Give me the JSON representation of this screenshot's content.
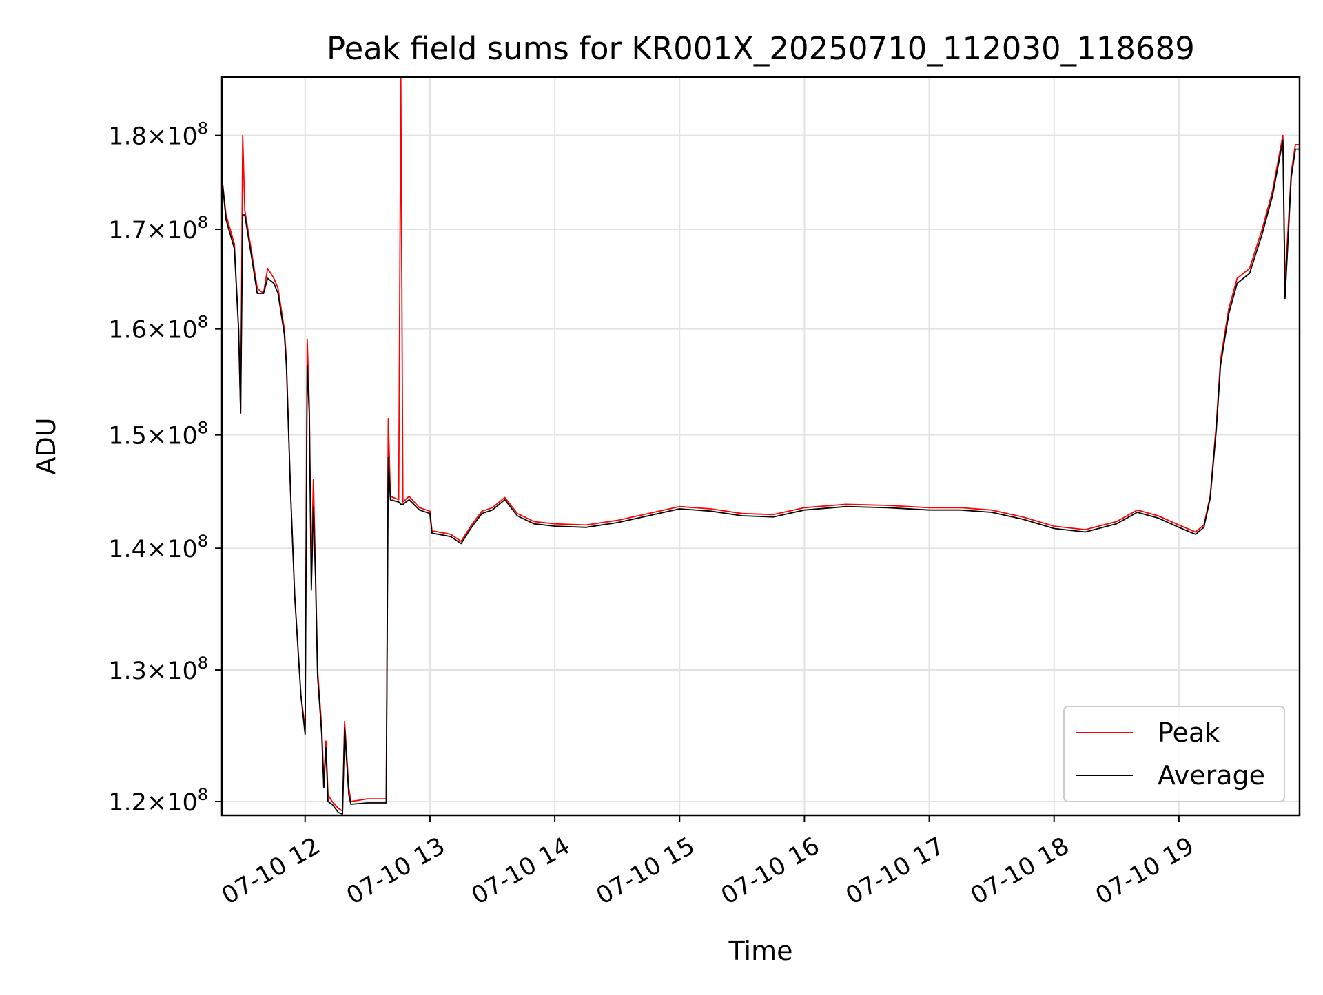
{
  "chart_data": {
    "type": "line",
    "title": "Peak field sums for KR001X_20250710_112030_118689",
    "xlabel": "Time",
    "ylabel": "ADU",
    "x_type": "time",
    "xlim": [
      "2025-07-10 11:20",
      "2025-07-10 19:58"
    ],
    "ylim": [
      119000000,
      186500000
    ],
    "yscale": "log",
    "grid": true,
    "legend_position": "lower-right",
    "x_ticks": [
      {
        "value": "2025-07-10 12:00",
        "label": "07-10 12"
      },
      {
        "value": "2025-07-10 13:00",
        "label": "07-10 13"
      },
      {
        "value": "2025-07-10 14:00",
        "label": "07-10 14"
      },
      {
        "value": "2025-07-10 15:00",
        "label": "07-10 15"
      },
      {
        "value": "2025-07-10 16:00",
        "label": "07-10 16"
      },
      {
        "value": "2025-07-10 17:00",
        "label": "07-10 17"
      },
      {
        "value": "2025-07-10 18:00",
        "label": "07-10 18"
      },
      {
        "value": "2025-07-10 19:00",
        "label": "07-10 19"
      }
    ],
    "y_ticks": [
      {
        "value": 120000000,
        "mantissa": "1.2",
        "base": "10",
        "exponent": "8"
      },
      {
        "value": 130000000,
        "mantissa": "1.3",
        "base": "10",
        "exponent": "8"
      },
      {
        "value": 140000000,
        "mantissa": "1.4",
        "base": "10",
        "exponent": "8"
      },
      {
        "value": 150000000,
        "mantissa": "1.5",
        "base": "10",
        "exponent": "8"
      },
      {
        "value": 160000000,
        "mantissa": "1.6",
        "base": "10",
        "exponent": "8"
      },
      {
        "value": 170000000,
        "mantissa": "1.7",
        "base": "10",
        "exponent": "8"
      },
      {
        "value": 180000000,
        "mantissa": "1.8",
        "base": "10",
        "exponent": "8"
      }
    ],
    "series": [
      {
        "name": "Peak",
        "color": "#ff0000",
        "points": [
          [
            "2025-07-10 11:20",
            175500000
          ],
          [
            "2025-07-10 11:22",
            171500000
          ],
          [
            "2025-07-10 11:26",
            168500000
          ],
          [
            "2025-07-10 11:28",
            160000000
          ],
          [
            "2025-07-10 11:29",
            152000000
          ],
          [
            "2025-07-10 11:30",
            180000000
          ],
          [
            "2025-07-10 11:31",
            172000000
          ],
          [
            "2025-07-10 11:34",
            168000000
          ],
          [
            "2025-07-10 11:37",
            164000000
          ],
          [
            "2025-07-10 11:40",
            163500000
          ],
          [
            "2025-07-10 11:42",
            166000000
          ],
          [
            "2025-07-10 11:45",
            165000000
          ],
          [
            "2025-07-10 11:47",
            164000000
          ],
          [
            "2025-07-10 11:50",
            160000000
          ],
          [
            "2025-07-10 11:51",
            157000000
          ],
          [
            "2025-07-10 11:53",
            145000000
          ],
          [
            "2025-07-10 11:55",
            136000000
          ],
          [
            "2025-07-10 11:58",
            128000000
          ],
          [
            "2025-07-10 12:00",
            125500000
          ],
          [
            "2025-07-10 12:01",
            159000000
          ],
          [
            "2025-07-10 12:02",
            153000000
          ],
          [
            "2025-07-10 12:03",
            138000000
          ],
          [
            "2025-07-10 12:04",
            146000000
          ],
          [
            "2025-07-10 12:05",
            138000000
          ],
          [
            "2025-07-10 12:06",
            130000000
          ],
          [
            "2025-07-10 12:08",
            125500000
          ],
          [
            "2025-07-10 12:09",
            121500000
          ],
          [
            "2025-07-10 12:10",
            124500000
          ],
          [
            "2025-07-10 12:11",
            120500000
          ],
          [
            "2025-07-10 12:13",
            120000000
          ],
          [
            "2025-07-10 12:16",
            119500000
          ],
          [
            "2025-07-10 12:18",
            119300000
          ],
          [
            "2025-07-10 12:19",
            126000000
          ],
          [
            "2025-07-10 12:21",
            121000000
          ],
          [
            "2025-07-10 12:22",
            120000000
          ],
          [
            "2025-07-10 12:30",
            120200000
          ],
          [
            "2025-07-10 12:39",
            120200000
          ],
          [
            "2025-07-10 12:40",
            151500000
          ],
          [
            "2025-07-10 12:41",
            144500000
          ],
          [
            "2025-07-10 12:45",
            144200000
          ],
          [
            "2025-07-10 12:46",
            186500000
          ],
          [
            "2025-07-10 12:47",
            144000000
          ],
          [
            "2025-07-10 12:50",
            144500000
          ],
          [
            "2025-07-10 12:55",
            143500000
          ],
          [
            "2025-07-10 13:00",
            143200000
          ],
          [
            "2025-07-10 13:01",
            141500000
          ],
          [
            "2025-07-10 13:10",
            141200000
          ],
          [
            "2025-07-10 13:15",
            140600000
          ],
          [
            "2025-07-10 13:20",
            142000000
          ],
          [
            "2025-07-10 13:25",
            143200000
          ],
          [
            "2025-07-10 13:30",
            143500000
          ],
          [
            "2025-07-10 13:36",
            144400000
          ],
          [
            "2025-07-10 13:42",
            143000000
          ],
          [
            "2025-07-10 13:50",
            142300000
          ],
          [
            "2025-07-10 14:00",
            142100000
          ],
          [
            "2025-07-10 14:15",
            142000000
          ],
          [
            "2025-07-10 14:30",
            142400000
          ],
          [
            "2025-07-10 14:45",
            143000000
          ],
          [
            "2025-07-10 15:00",
            143600000
          ],
          [
            "2025-07-10 15:15",
            143400000
          ],
          [
            "2025-07-10 15:30",
            143000000
          ],
          [
            "2025-07-10 15:45",
            142900000
          ],
          [
            "2025-07-10 16:00",
            143500000
          ],
          [
            "2025-07-10 16:20",
            143800000
          ],
          [
            "2025-07-10 16:40",
            143700000
          ],
          [
            "2025-07-10 17:00",
            143500000
          ],
          [
            "2025-07-10 17:15",
            143500000
          ],
          [
            "2025-07-10 17:30",
            143300000
          ],
          [
            "2025-07-10 17:45",
            142700000
          ],
          [
            "2025-07-10 18:00",
            141900000
          ],
          [
            "2025-07-10 18:15",
            141600000
          ],
          [
            "2025-07-10 18:30",
            142300000
          ],
          [
            "2025-07-10 18:40",
            143300000
          ],
          [
            "2025-07-10 18:50",
            142800000
          ],
          [
            "2025-07-10 19:00",
            142000000
          ],
          [
            "2025-07-10 19:08",
            141400000
          ],
          [
            "2025-07-10 19:12",
            142000000
          ],
          [
            "2025-07-10 19:15",
            144500000
          ],
          [
            "2025-07-10 19:18",
            151000000
          ],
          [
            "2025-07-10 19:20",
            157000000
          ],
          [
            "2025-07-10 19:24",
            162000000
          ],
          [
            "2025-07-10 19:28",
            165000000
          ],
          [
            "2025-07-10 19:34",
            166000000
          ],
          [
            "2025-07-10 19:40",
            170000000
          ],
          [
            "2025-07-10 19:45",
            174000000
          ],
          [
            "2025-07-10 19:50",
            180000000
          ],
          [
            "2025-07-10 19:51",
            164500000
          ],
          [
            "2025-07-10 19:54",
            176000000
          ],
          [
            "2025-07-10 19:56",
            179000000
          ],
          [
            "2025-07-10 19:58",
            179000000
          ]
        ]
      },
      {
        "name": "Average",
        "color": "#000000",
        "points": [
          [
            "2025-07-10 11:20",
            175500000
          ],
          [
            "2025-07-10 11:22",
            171000000
          ],
          [
            "2025-07-10 11:26",
            168000000
          ],
          [
            "2025-07-10 11:28",
            160000000
          ],
          [
            "2025-07-10 11:29",
            152000000
          ],
          [
            "2025-07-10 11:30",
            171500000
          ],
          [
            "2025-07-10 11:31",
            171500000
          ],
          [
            "2025-07-10 11:34",
            167500000
          ],
          [
            "2025-07-10 11:37",
            163500000
          ],
          [
            "2025-07-10 11:40",
            163500000
          ],
          [
            "2025-07-10 11:42",
            165000000
          ],
          [
            "2025-07-10 11:45",
            164500000
          ],
          [
            "2025-07-10 11:47",
            163500000
          ],
          [
            "2025-07-10 11:50",
            159500000
          ],
          [
            "2025-07-10 11:51",
            156500000
          ],
          [
            "2025-07-10 11:53",
            145000000
          ],
          [
            "2025-07-10 11:55",
            136000000
          ],
          [
            "2025-07-10 11:58",
            128000000
          ],
          [
            "2025-07-10 12:00",
            125000000
          ],
          [
            "2025-07-10 12:01",
            156500000
          ],
          [
            "2025-07-10 12:02",
            152000000
          ],
          [
            "2025-07-10 12:03",
            136500000
          ],
          [
            "2025-07-10 12:04",
            143500000
          ],
          [
            "2025-07-10 12:05",
            137500000
          ],
          [
            "2025-07-10 12:06",
            129500000
          ],
          [
            "2025-07-10 12:08",
            125000000
          ],
          [
            "2025-07-10 12:09",
            121000000
          ],
          [
            "2025-07-10 12:10",
            124000000
          ],
          [
            "2025-07-10 12:11",
            120000000
          ],
          [
            "2025-07-10 12:13",
            119800000
          ],
          [
            "2025-07-10 12:16",
            119200000
          ],
          [
            "2025-07-10 12:18",
            119100000
          ],
          [
            "2025-07-10 12:19",
            125500000
          ],
          [
            "2025-07-10 12:21",
            120500000
          ],
          [
            "2025-07-10 12:22",
            119800000
          ],
          [
            "2025-07-10 12:30",
            119900000
          ],
          [
            "2025-07-10 12:39",
            119900000
          ],
          [
            "2025-07-10 12:40",
            148000000
          ],
          [
            "2025-07-10 12:41",
            144200000
          ],
          [
            "2025-07-10 12:45",
            144000000
          ],
          [
            "2025-07-10 12:46",
            143800000
          ],
          [
            "2025-07-10 12:47",
            143800000
          ],
          [
            "2025-07-10 12:50",
            144200000
          ],
          [
            "2025-07-10 12:55",
            143300000
          ],
          [
            "2025-07-10 13:00",
            143000000
          ],
          [
            "2025-07-10 13:01",
            141300000
          ],
          [
            "2025-07-10 13:10",
            141000000
          ],
          [
            "2025-07-10 13:15",
            140400000
          ],
          [
            "2025-07-10 13:20",
            141800000
          ],
          [
            "2025-07-10 13:25",
            143000000
          ],
          [
            "2025-07-10 13:30",
            143300000
          ],
          [
            "2025-07-10 13:36",
            144200000
          ],
          [
            "2025-07-10 13:42",
            142800000
          ],
          [
            "2025-07-10 13:50",
            142100000
          ],
          [
            "2025-07-10 14:00",
            141900000
          ],
          [
            "2025-07-10 14:15",
            141800000
          ],
          [
            "2025-07-10 14:30",
            142200000
          ],
          [
            "2025-07-10 14:45",
            142800000
          ],
          [
            "2025-07-10 15:00",
            143400000
          ],
          [
            "2025-07-10 15:15",
            143200000
          ],
          [
            "2025-07-10 15:30",
            142800000
          ],
          [
            "2025-07-10 15:45",
            142700000
          ],
          [
            "2025-07-10 16:00",
            143300000
          ],
          [
            "2025-07-10 16:20",
            143600000
          ],
          [
            "2025-07-10 16:40",
            143500000
          ],
          [
            "2025-07-10 17:00",
            143300000
          ],
          [
            "2025-07-10 17:15",
            143300000
          ],
          [
            "2025-07-10 17:30",
            143100000
          ],
          [
            "2025-07-10 17:45",
            142500000
          ],
          [
            "2025-07-10 18:00",
            141700000
          ],
          [
            "2025-07-10 18:15",
            141400000
          ],
          [
            "2025-07-10 18:30",
            142100000
          ],
          [
            "2025-07-10 18:40",
            143100000
          ],
          [
            "2025-07-10 18:50",
            142600000
          ],
          [
            "2025-07-10 19:00",
            141800000
          ],
          [
            "2025-07-10 19:08",
            141200000
          ],
          [
            "2025-07-10 19:12",
            141800000
          ],
          [
            "2025-07-10 19:15",
            144300000
          ],
          [
            "2025-07-10 19:18",
            150500000
          ],
          [
            "2025-07-10 19:20",
            156500000
          ],
          [
            "2025-07-10 19:24",
            161500000
          ],
          [
            "2025-07-10 19:28",
            164500000
          ],
          [
            "2025-07-10 19:34",
            165500000
          ],
          [
            "2025-07-10 19:40",
            169500000
          ],
          [
            "2025-07-10 19:45",
            173500000
          ],
          [
            "2025-07-10 19:50",
            179500000
          ],
          [
            "2025-07-10 19:51",
            163000000
          ],
          [
            "2025-07-10 19:54",
            175500000
          ],
          [
            "2025-07-10 19:56",
            178500000
          ],
          [
            "2025-07-10 19:58",
            178500000
          ]
        ]
      }
    ]
  }
}
